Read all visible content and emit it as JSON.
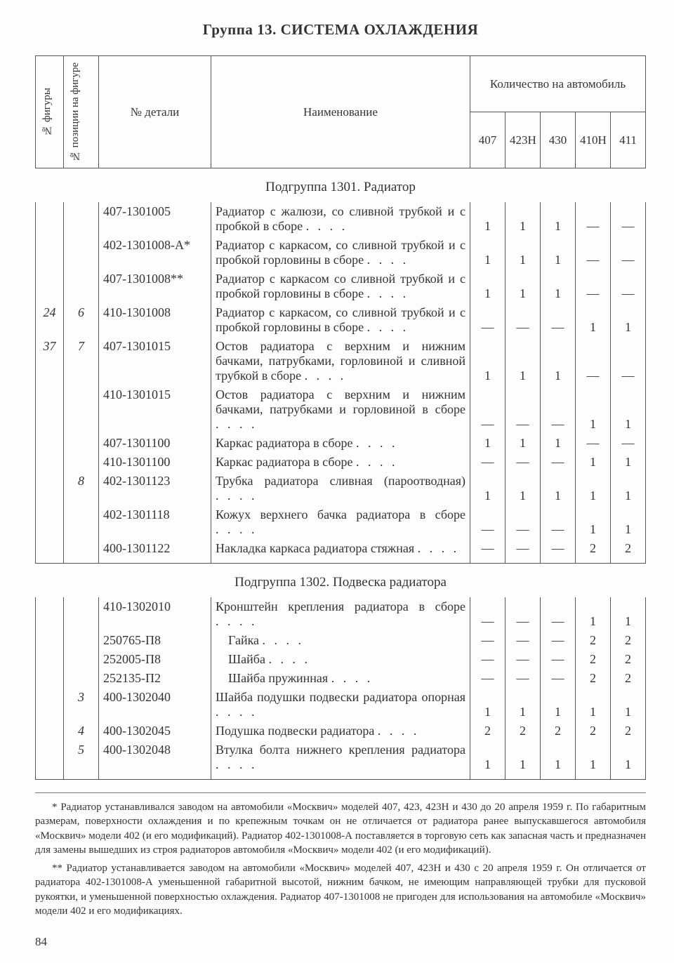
{
  "title": "Группа 13. СИСТЕМА ОХЛАЖДЕНИЯ",
  "headers": {
    "fig": "№ фигуры",
    "pos": "№ позиции на фигуре",
    "part": "№ детали",
    "name": "Наименование",
    "qty_group": "Количество на автомобиль",
    "models": [
      "407",
      "423Н",
      "430",
      "410Н",
      "411"
    ]
  },
  "subgroups": [
    {
      "title": "Подгруппа 1301. Радиатор",
      "rows": [
        {
          "fig": "",
          "pos": "",
          "part": "407-1301005",
          "name": "Радиатор с жалюзи, со сливной трубкой и с пробкой в сборе",
          "q": [
            "1",
            "1",
            "1",
            "—",
            "—"
          ]
        },
        {
          "fig": "",
          "pos": "",
          "part": "402-1301008-А*",
          "name": "Радиатор с каркасом, со сливной трубкой и с пробкой горловины в сборе",
          "q": [
            "1",
            "1",
            "1",
            "—",
            "—"
          ]
        },
        {
          "fig": "",
          "pos": "",
          "part": "407-1301008**",
          "name": "Радиатор с каркасом со сливной трубкой и с пробкой горловины в сборе",
          "q": [
            "1",
            "1",
            "1",
            "—",
            "—"
          ]
        },
        {
          "fig": "24",
          "pos": "6",
          "part": "410-1301008",
          "name": "Радиатор с каркасом, со сливной трубкой и с пробкой горловины в сборе",
          "q": [
            "—",
            "—",
            "—",
            "1",
            "1"
          ]
        },
        {
          "fig": "37",
          "pos": "7",
          "part": "407-1301015",
          "name": "Остов радиатора с верхним и нижним бачками, патрубками, горловиной и сливной трубкой в сборе",
          "q": [
            "1",
            "1",
            "1",
            "—",
            "—"
          ]
        },
        {
          "fig": "",
          "pos": "",
          "part": "410-1301015",
          "name": "Остов радиатора с верхним и нижним бачками, патрубками и горловиной в сборе",
          "q": [
            "—",
            "—",
            "—",
            "1",
            "1"
          ]
        },
        {
          "fig": "",
          "pos": "",
          "part": "407-1301100",
          "name": "Каркас радиатора в сборе",
          "q": [
            "1",
            "1",
            "1",
            "—",
            "—"
          ]
        },
        {
          "fig": "",
          "pos": "",
          "part": "410-1301100",
          "name": "Каркас радиатора в сборе",
          "q": [
            "—",
            "—",
            "—",
            "1",
            "1"
          ]
        },
        {
          "fig": "",
          "pos": "8",
          "part": "402-1301123",
          "name": "Трубка радиатора сливная (пароотводная)",
          "q": [
            "1",
            "1",
            "1",
            "1",
            "1"
          ]
        },
        {
          "fig": "",
          "pos": "",
          "part": "402-1301118",
          "name": "Кожух верхнего бачка радиатора в сборе",
          "q": [
            "—",
            "—",
            "—",
            "1",
            "1"
          ]
        },
        {
          "fig": "",
          "pos": "",
          "part": "400-1301122",
          "name": "Накладка каркаса радиатора стяжная",
          "q": [
            "—",
            "—",
            "—",
            "2",
            "2"
          ]
        }
      ]
    },
    {
      "title": "Подгруппа 1302. Подвеска радиатора",
      "rows": [
        {
          "fig": "",
          "pos": "",
          "part": "410-1302010",
          "name": "Кронштейн крепления радиатора в сборе",
          "q": [
            "—",
            "—",
            "—",
            "1",
            "1"
          ]
        },
        {
          "fig": "",
          "pos": "",
          "part": "250765-П8",
          "name": " Гайка",
          "q": [
            "—",
            "—",
            "—",
            "2",
            "2"
          ]
        },
        {
          "fig": "",
          "pos": "",
          "part": "252005-П8",
          "name": " Шайба",
          "q": [
            "—",
            "—",
            "—",
            "2",
            "2"
          ]
        },
        {
          "fig": "",
          "pos": "",
          "part": "252135-П2",
          "name": " Шайба пружинная",
          "q": [
            "—",
            "—",
            "—",
            "2",
            "2"
          ]
        },
        {
          "fig": "",
          "pos": "3",
          "part": "400-1302040",
          "name": "Шайба подушки подвески радиатора опорная",
          "q": [
            "1",
            "1",
            "1",
            "1",
            "1"
          ]
        },
        {
          "fig": "",
          "pos": "4",
          "part": "400-1302045",
          "name": "Подушка подвески радиатора",
          "q": [
            "2",
            "2",
            "2",
            "2",
            "2"
          ]
        },
        {
          "fig": "",
          "pos": "5",
          "part": "400-1302048",
          "name": "Втулка болта нижнего крепления радиатора",
          "q": [
            "1",
            "1",
            "1",
            "1",
            "1"
          ]
        }
      ]
    }
  ],
  "footnotes": [
    "* Радиатор устанавливался заводом на автомобили «Москвич» моделей 407, 423, 423Н и 430 до 20 апреля 1959 г. По габаритным размерам, поверхности охлаждения и по крепежным точкам он не отличается от радиатора ранее выпускавшегося автомобиля «Москвич» модели 402 (и его модификаций). Радиатор 402-1301008-А поставляется в торговую сеть как запасная часть и предназначен для замены вышедших из строя радиаторов автомобиля «Москвич» модели 402 (и его модификаций).",
    "** Радиатор устанавливается заводом на автомобили «Москвич» моделей 407, 423Н и 430 с 20 апреля 1959 г. Он отличается от радиатора 402-1301008-А уменьшенной габаритной высотой, нижним бачком, не имеющим направляющей трубки для пусковой рукоятки, и уменьшенной поверхностью охлаждения. Радиатор 407-1301008 не пригоден для использования на автомобиле «Москвич» модели 402 и его модификациях."
  ],
  "page_number": "84"
}
